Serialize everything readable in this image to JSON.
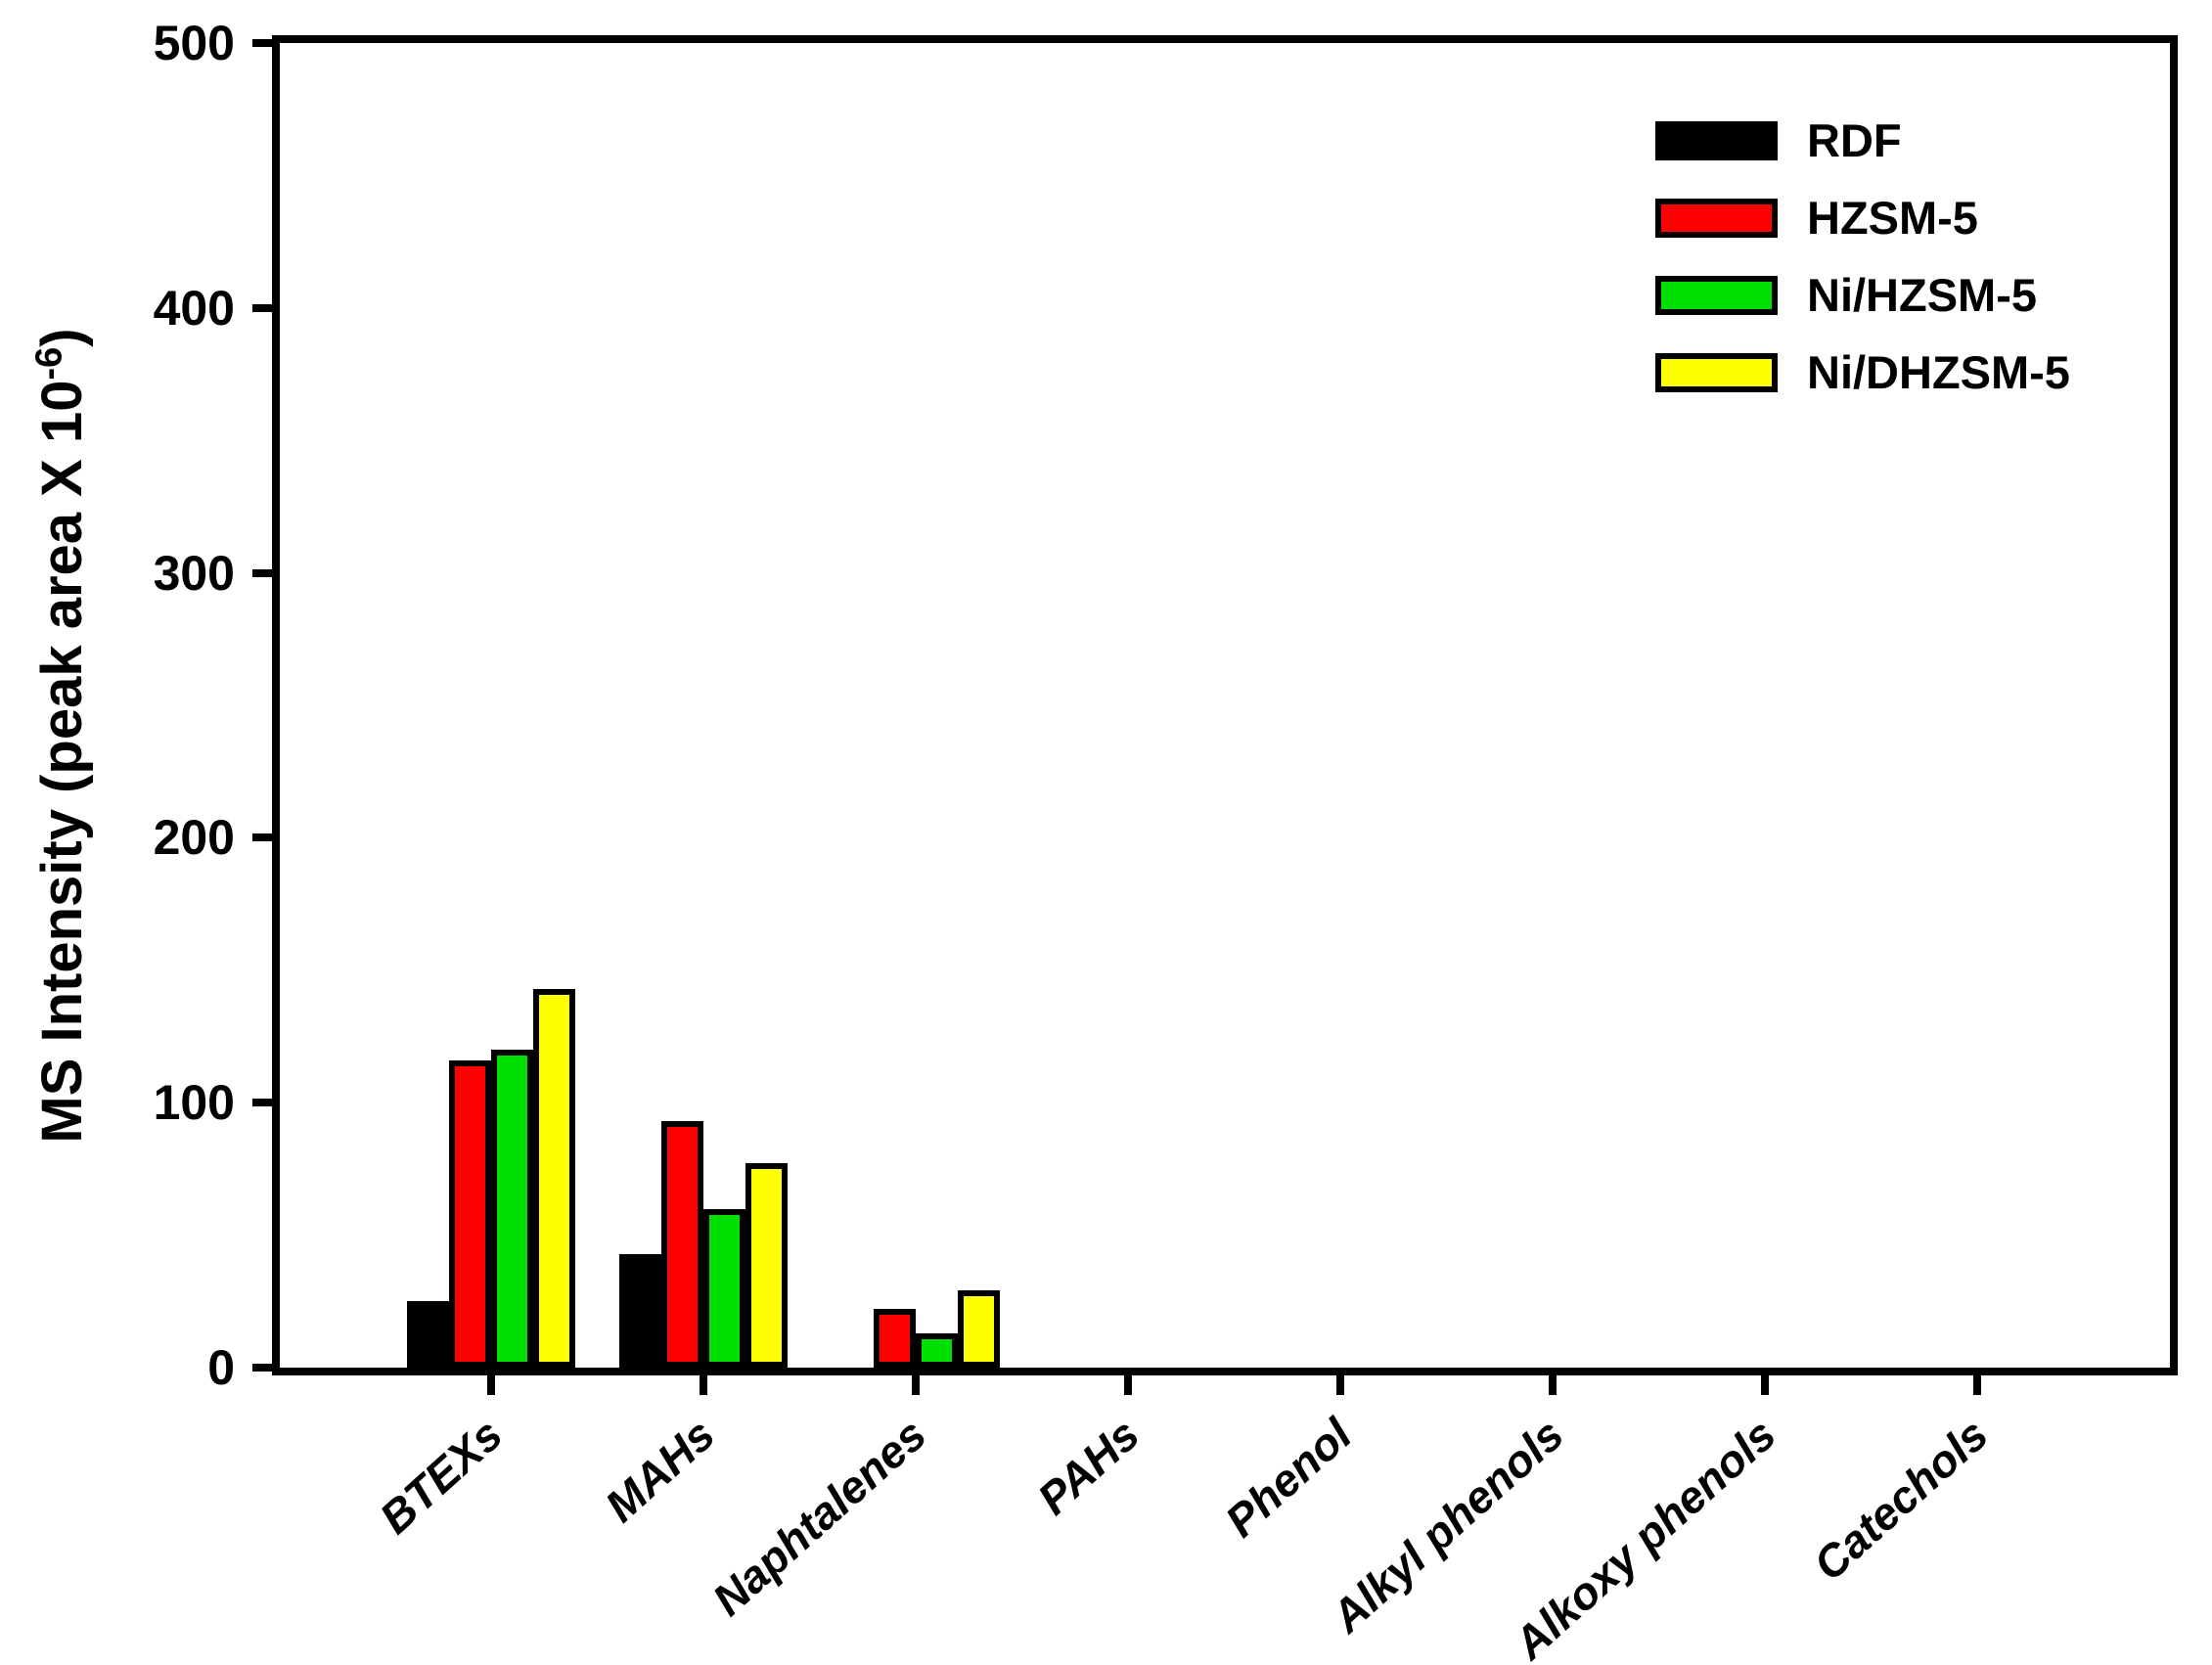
{
  "chart_data": {
    "type": "bar",
    "title": "",
    "categories": [
      "BTEXs",
      "MAHs",
      "Naphtalenes",
      "PAHs",
      "Phenol",
      "Alkyl phenols",
      "Alkoxy phenols",
      "Catechols"
    ],
    "series": [
      {
        "name": "RDF",
        "color": "#000000",
        "values": [
          25,
          43,
          0,
          0,
          0,
          0,
          0,
          0
        ]
      },
      {
        "name": "HZSM-5",
        "color": "#ff0000",
        "values": [
          116,
          93,
          22,
          0,
          0,
          0,
          0,
          0
        ]
      },
      {
        "name": "Ni/HZSM-5",
        "color": "#00e000",
        "values": [
          120,
          60,
          13,
          0,
          0,
          0,
          0,
          0
        ]
      },
      {
        "name": "Ni/DHZSM-5",
        "color": "#ffff00",
        "values": [
          143,
          77,
          29,
          0,
          0,
          0,
          0,
          0
        ]
      }
    ],
    "ylabel": {
      "prefix": "MS Intensity (peak area X 10",
      "superscript": "-6",
      "suffix": ")"
    },
    "xlabel": "",
    "yticks": [
      0,
      100,
      200,
      300,
      400,
      500
    ],
    "ylim": [
      0,
      500
    ],
    "grid": false,
    "legend_position": "top-right-inside",
    "bar_edge_color": "#000000",
    "background_color": "#ffffff"
  }
}
